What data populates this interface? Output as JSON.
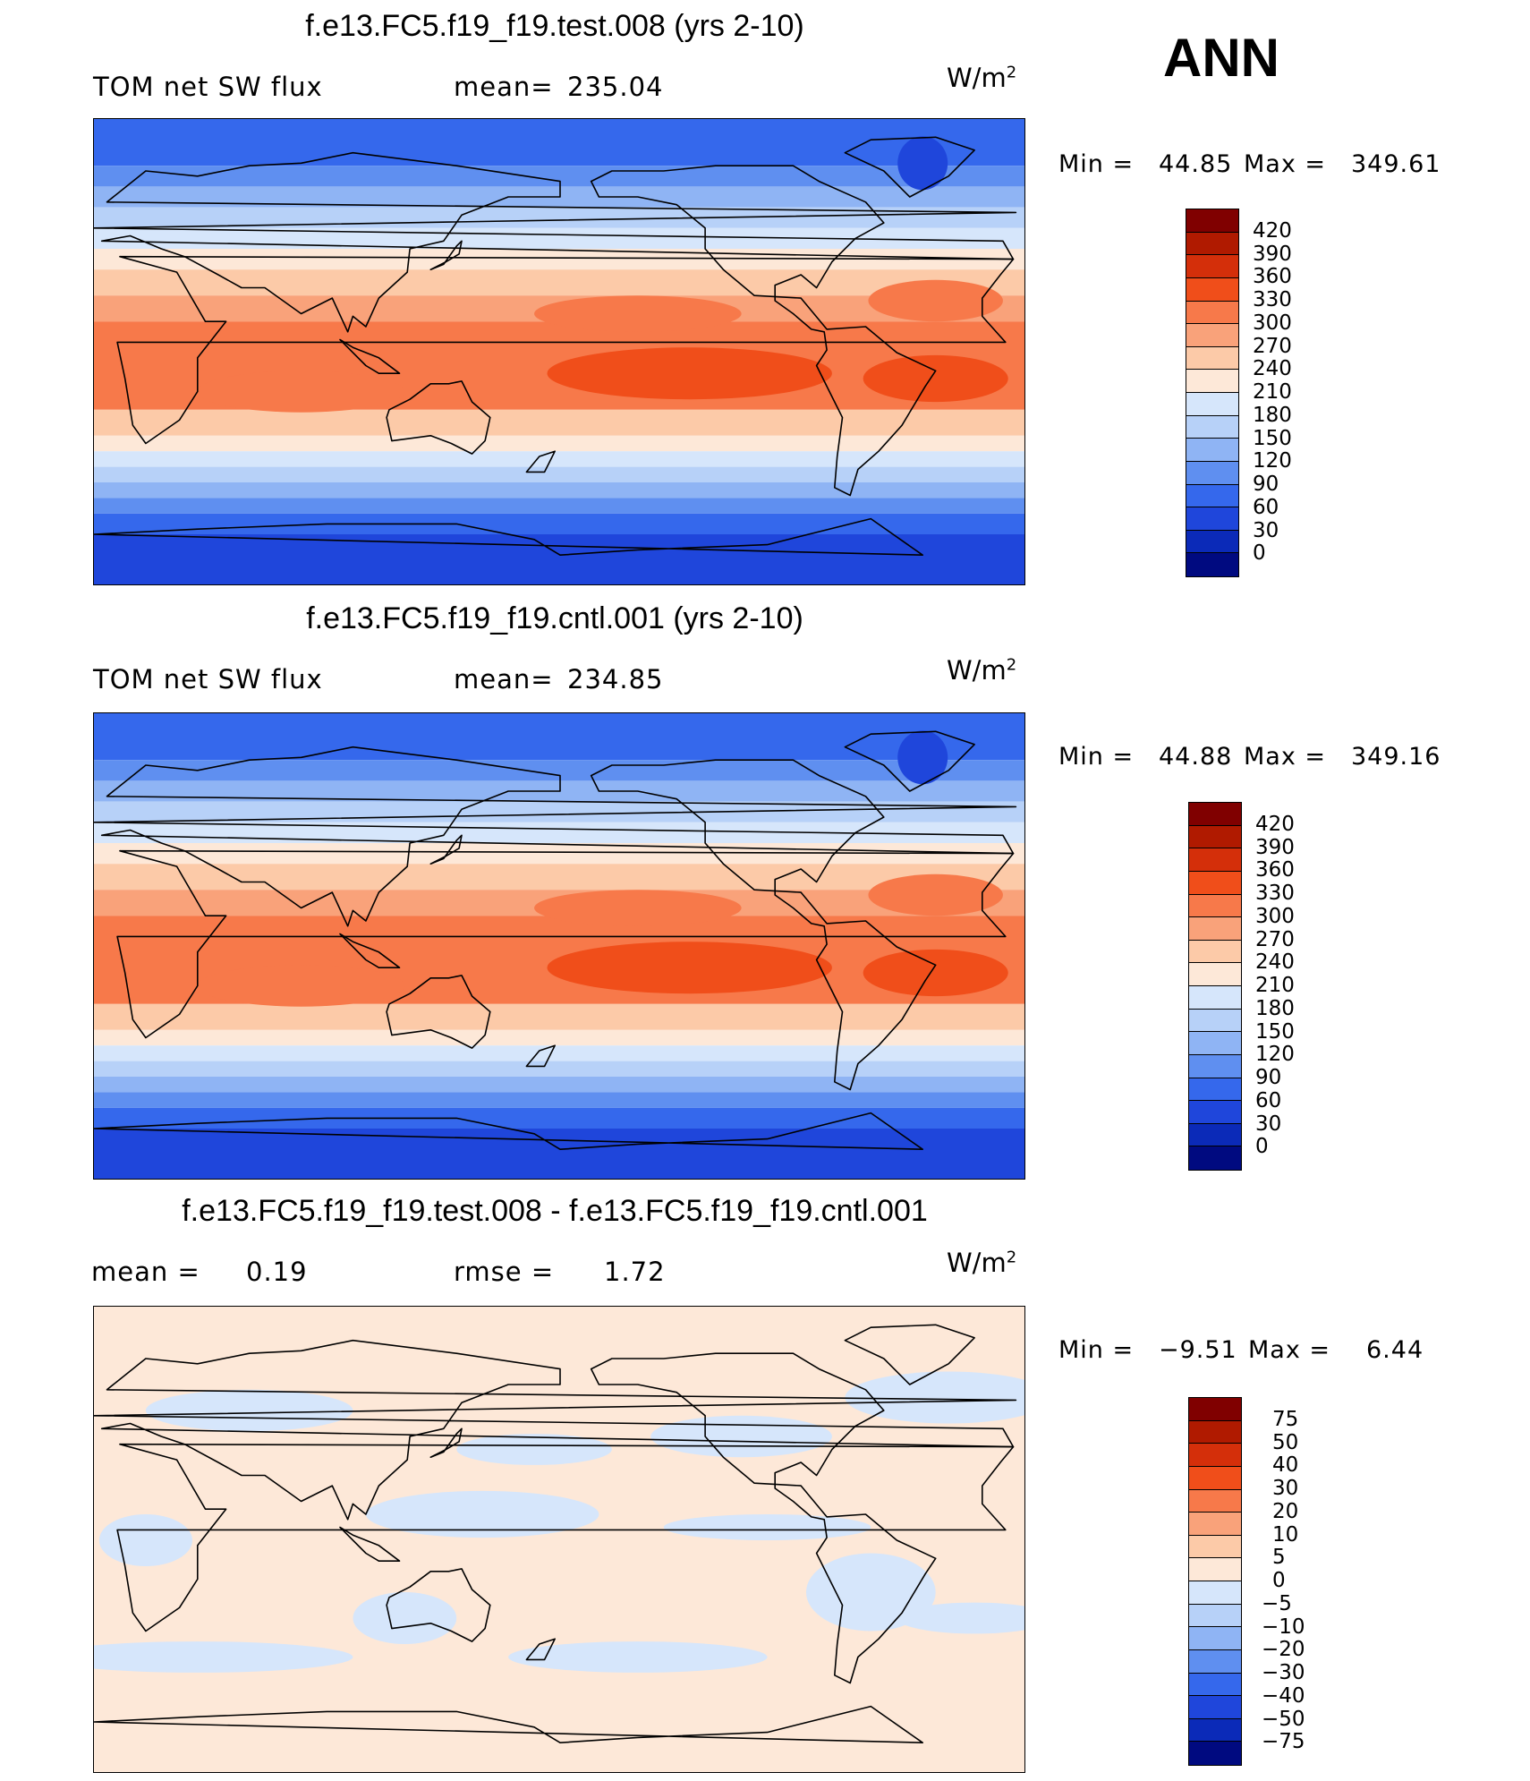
{
  "season": "ANN",
  "units_base": "W/m",
  "units_exp": "2",
  "panels": [
    {
      "id": "test",
      "title": "f.e13.FC5.f19_f19.test.008 (yrs 2-10)",
      "left_label": "TOM net SW flux",
      "stat_label": "mean=",
      "stat_value": "235.04",
      "min_label": "Min =",
      "min_value": "44.85",
      "max_label": "Max =",
      "max_value": "349.61"
    },
    {
      "id": "cntl",
      "title": "f.e13.FC5.f19_f19.cntl.001 (yrs 2-10)",
      "left_label": "TOM net SW flux",
      "stat_label": "mean=",
      "stat_value": "234.85",
      "min_label": "Min =",
      "min_value": "44.88",
      "max_label": "Max =",
      "max_value": "349.16"
    },
    {
      "id": "diff",
      "title": "f.e13.FC5.f19_f19.test.008 - f.e13.FC5.f19_f19.cntl.001",
      "left_label": "mean =",
      "left_value": "0.19",
      "stat_label": "rmse =",
      "stat_value": "1.72",
      "min_label": "Min =",
      "min_value": "−9.51",
      "max_label": "Max =",
      "max_value": "6.44"
    }
  ],
  "colorbars": {
    "abs": {
      "labels": [
        "420",
        "390",
        "360",
        "330",
        "300",
        "270",
        "240",
        "210",
        "180",
        "150",
        "120",
        "90",
        "60",
        "30",
        "0"
      ],
      "colors": [
        "#800000",
        "#b01a00",
        "#d42f0a",
        "#f04e1a",
        "#f7794a",
        "#f9a27a",
        "#fccaa8",
        "#fde8d8",
        "#d6e6fb",
        "#b7d1f8",
        "#8fb4f4",
        "#5f8ff0",
        "#3568ec",
        "#1f46db",
        "#0b2ab8",
        "#000a80"
      ]
    },
    "diff": {
      "labels": [
        "75",
        "50",
        "40",
        "30",
        "20",
        "10",
        "5",
        "0",
        "−5",
        "−10",
        "−20",
        "−30",
        "−40",
        "−50",
        "−75"
      ],
      "colors": [
        "#800000",
        "#b01a00",
        "#d42f0a",
        "#f04e1a",
        "#f7794a",
        "#f9a27a",
        "#fccaa8",
        "#fde8d8",
        "#d6e6fb",
        "#b7d1f8",
        "#8fb4f4",
        "#5f8ff0",
        "#3568ec",
        "#1f46db",
        "#0b2ab8",
        "#000a80"
      ]
    }
  }
}
